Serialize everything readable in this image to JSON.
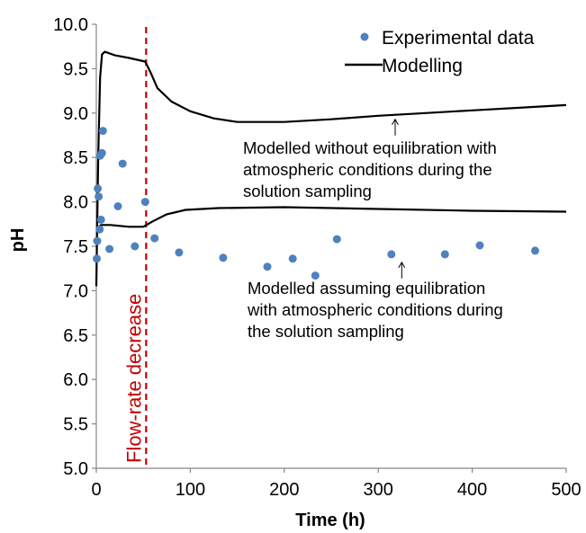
{
  "chart_data": {
    "type": "scatter",
    "xlabel": "Time (h)",
    "ylabel": "pH",
    "xlim": [
      0,
      500
    ],
    "ylim": [
      5.0,
      10.0
    ],
    "x_ticks": [
      "0",
      "100",
      "200",
      "300",
      "400",
      "500"
    ],
    "y_ticks": [
      "5.0",
      "5.5",
      "6.0",
      "6.5",
      "7.0",
      "7.5",
      "8.0",
      "8.5",
      "9.0",
      "9.5",
      "10.0"
    ],
    "grid": false,
    "legend_position": "top-right",
    "legend": {
      "points_label": "Experimental data",
      "line_label": "Modelling"
    },
    "colors": {
      "points": "#4f81bd",
      "line": "#000000",
      "marker_line": "#c00000"
    },
    "series": [
      {
        "name": "Experimental data",
        "type": "scatter",
        "points": [
          [
            0.5,
            7.36
          ],
          [
            1,
            7.56
          ],
          [
            1.5,
            8.15
          ],
          [
            2.5,
            8.06
          ],
          [
            3.5,
            7.69
          ],
          [
            4,
            8.52
          ],
          [
            5,
            7.8
          ],
          [
            6,
            8.55
          ],
          [
            7,
            8.8
          ],
          [
            14,
            7.47
          ],
          [
            23,
            7.95
          ],
          [
            28,
            8.43
          ],
          [
            41,
            7.5
          ],
          [
            52,
            8.0
          ],
          [
            62,
            7.59
          ],
          [
            88,
            7.43
          ],
          [
            135,
            7.37
          ],
          [
            182,
            7.27
          ],
          [
            209,
            7.36
          ],
          [
            233,
            7.17
          ],
          [
            256,
            7.58
          ],
          [
            314,
            7.41
          ],
          [
            371,
            7.41
          ],
          [
            408,
            7.51
          ],
          [
            467,
            7.45
          ]
        ]
      },
      {
        "name": "Modelling",
        "type": "line",
        "curves": [
          [
            [
              0,
              7.05
            ],
            [
              2,
              8.5
            ],
            [
              4,
              9.4
            ],
            [
              6,
              9.66
            ],
            [
              9,
              9.69
            ],
            [
              20,
              9.65
            ],
            [
              35,
              9.62
            ],
            [
              52,
              9.58
            ],
            [
              58,
              9.45
            ],
            [
              65,
              9.28
            ],
            [
              80,
              9.13
            ],
            [
              100,
              9.02
            ],
            [
              125,
              8.94
            ],
            [
              150,
              8.9
            ],
            [
              200,
              8.9
            ],
            [
              250,
              8.93
            ],
            [
              300,
              8.97
            ],
            [
              350,
              9.0
            ],
            [
              400,
              9.03
            ],
            [
              450,
              9.06
            ],
            [
              500,
              9.09
            ]
          ],
          [
            [
              1,
              7.7
            ],
            [
              5,
              7.74
            ],
            [
              15,
              7.74
            ],
            [
              35,
              7.72
            ],
            [
              50,
              7.72
            ],
            [
              60,
              7.78
            ],
            [
              75,
              7.86
            ],
            [
              95,
              7.91
            ],
            [
              130,
              7.93
            ],
            [
              200,
              7.94
            ],
            [
              300,
              7.92
            ],
            [
              400,
              7.9
            ],
            [
              500,
              7.89
            ]
          ]
        ]
      }
    ],
    "vertical_marker": {
      "x": 53,
      "label": "Flow-rate  decrease"
    },
    "annotations": [
      {
        "lines": [
          "Modelled without equilibration with",
          "atmospheric conditions during the",
          "solution sampling"
        ],
        "arrow_x": 318,
        "arrow_y": 8.97
      },
      {
        "lines": [
          "Modelled assuming equilibration",
          "with atmospheric conditions during",
          "the solution sampling"
        ],
        "arrow_x": 325,
        "arrow_y": 7.36
      }
    ]
  }
}
